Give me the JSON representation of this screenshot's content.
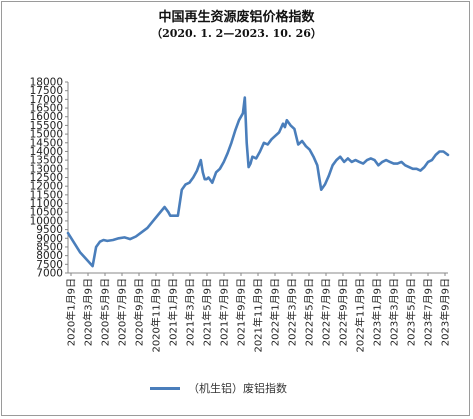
{
  "chart_data": {
    "type": "line",
    "title": "中国再生资源废铝价格指数",
    "subtitle": "（2020. 1. 2—2023. 10. 26）",
    "ylim": [
      7000,
      18000
    ],
    "yticks": [
      7000,
      7500,
      8000,
      8500,
      9000,
      9500,
      10000,
      10500,
      11000,
      11500,
      12000,
      12500,
      13000,
      13500,
      14000,
      14500,
      15000,
      15500,
      16000,
      16500,
      17000,
      17500,
      18000
    ],
    "xlim": [
      "2020-01-02",
      "2023-10-26"
    ],
    "categories": [
      "2020年1月9日",
      "2020年3月9日",
      "2020年5月9日",
      "2020年7月9日",
      "2020年9月9日",
      "2020年11月9日",
      "2021年1月9日",
      "2021年3月9日",
      "2021年5月9日",
      "2021年7月9日",
      "2021年9月9日",
      "2021年11月9日",
      "2022年1月9日",
      "2022年3月9日",
      "2022年5月9日",
      "2022年7月9日",
      "2022年9月9日",
      "2022年11月9日",
      "2023年1月9日",
      "2023年3月9日",
      "2023年5月9日",
      "2023年7月9日",
      "2023年9月9日"
    ],
    "grid": false,
    "legend_position": "bottom",
    "series": [
      {
        "name": "（机生铝）废铝指数",
        "color": "#4a7ebb",
        "x": [
          "2020-01-02",
          "2020-02-15",
          "2020-04-01",
          "2020-04-05",
          "2020-04-14",
          "2020-04-28",
          "2020-05-11",
          "2020-05-25",
          "2020-06-15",
          "2020-07-06",
          "2020-07-27",
          "2020-08-17",
          "2020-09-07",
          "2020-09-28",
          "2020-10-19",
          "2020-11-09",
          "2020-11-30",
          "2020-12-21",
          "2021-01-04",
          "2021-01-11",
          "2021-01-25",
          "2021-02-08",
          "2021-02-22",
          "2021-03-08",
          "2021-03-22",
          "2021-04-05",
          "2021-04-19",
          "2021-05-03",
          "2021-05-10",
          "2021-05-17",
          "2021-05-24",
          "2021-05-31",
          "2021-06-14",
          "2021-06-28",
          "2021-07-12",
          "2021-07-26",
          "2021-08-09",
          "2021-08-23",
          "2021-09-06",
          "2021-09-20",
          "2021-10-04",
          "2021-10-11",
          "2021-10-18",
          "2021-10-25",
          "2021-11-01",
          "2021-11-08",
          "2021-11-22",
          "2021-12-06",
          "2021-12-20",
          "2022-01-03",
          "2022-01-17",
          "2022-01-31",
          "2022-02-14",
          "2022-02-28",
          "2022-03-07",
          "2022-03-14",
          "2022-03-28",
          "2022-04-11",
          "2022-04-25",
          "2022-05-09",
          "2022-05-23",
          "2022-06-06",
          "2022-06-20",
          "2022-07-04",
          "2022-07-11",
          "2022-07-18",
          "2022-08-01",
          "2022-08-15",
          "2022-08-29",
          "2022-09-12",
          "2022-09-26",
          "2022-10-10",
          "2022-10-24",
          "2022-11-07",
          "2022-11-21",
          "2022-12-05",
          "2022-12-19",
          "2023-01-02",
          "2023-01-16",
          "2023-01-30",
          "2023-02-13",
          "2023-02-27",
          "2023-03-13",
          "2023-03-27",
          "2023-04-10",
          "2023-04-24",
          "2023-05-08",
          "2023-05-22",
          "2023-06-05",
          "2023-06-19",
          "2023-07-03",
          "2023-07-17",
          "2023-07-31",
          "2023-08-14",
          "2023-08-28",
          "2023-09-11",
          "2023-09-25",
          "2023-10-09",
          "2023-10-26"
        ],
        "values": [
          9300,
          8200,
          7400,
          7700,
          8500,
          8800,
          8900,
          8850,
          8900,
          9000,
          9050,
          8950,
          9100,
          9350,
          9600,
          10000,
          10400,
          10800,
          10500,
          10300,
          10300,
          10300,
          11800,
          12100,
          12200,
          12500,
          12900,
          13500,
          12800,
          12400,
          12400,
          12500,
          12200,
          12800,
          13000,
          13400,
          13900,
          14500,
          15200,
          15800,
          16200,
          17100,
          14500,
          13100,
          13300,
          13700,
          13600,
          14000,
          14500,
          14400,
          14700,
          14900,
          15100,
          15600,
          15400,
          15800,
          15500,
          15300,
          14400,
          14600,
          14300,
          14100,
          13700,
          13200,
          12500,
          11800,
          12100,
          12600,
          13200,
          13500,
          13700,
          13400,
          13600,
          13400,
          13500,
          13400,
          13300,
          13500,
          13600,
          13500,
          13200,
          13400,
          13500,
          13400,
          13300,
          13300,
          13400,
          13200,
          13100,
          13000,
          13000,
          12900,
          13100,
          13400,
          13500,
          13800,
          14000,
          14000,
          13800
        ]
      }
    ]
  }
}
